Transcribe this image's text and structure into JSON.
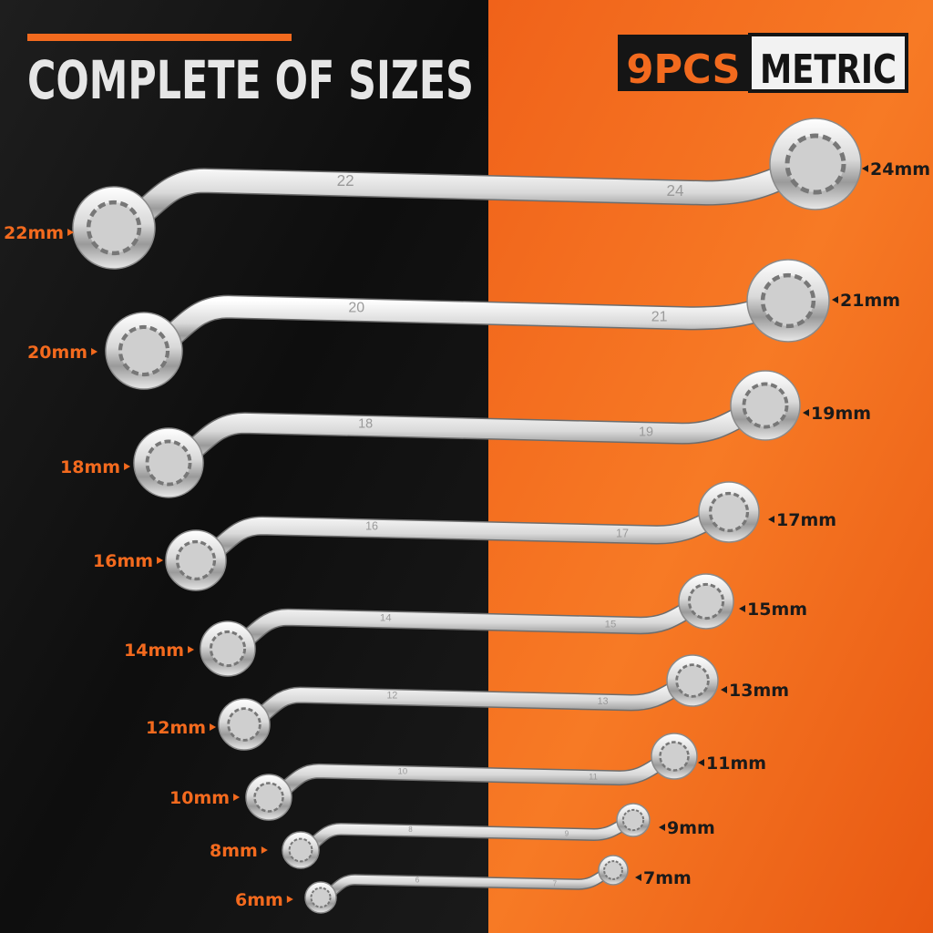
{
  "header": {
    "title": "COMPLETE OF SIZES",
    "badge_count": "9PCS",
    "badge_type": "METRIC"
  },
  "wrenches": [
    {
      "left_label": "22mm",
      "right_label": "24mm",
      "left_stamp": "22",
      "right_stamp": "24"
    },
    {
      "left_label": "20mm",
      "right_label": "21mm",
      "left_stamp": "20",
      "right_stamp": "21"
    },
    {
      "left_label": "18mm",
      "right_label": "19mm",
      "left_stamp": "18",
      "right_stamp": "19"
    },
    {
      "left_label": "16mm",
      "right_label": "17mm",
      "left_stamp": "16",
      "right_stamp": "17"
    },
    {
      "left_label": "14mm",
      "right_label": "15mm",
      "left_stamp": "14",
      "right_stamp": "15"
    },
    {
      "left_label": "12mm",
      "right_label": "13mm",
      "left_stamp": "12",
      "right_stamp": "13"
    },
    {
      "left_label": "10mm",
      "right_label": "11mm",
      "left_stamp": "10",
      "right_stamp": "11"
    },
    {
      "left_label": "8mm",
      "right_label": "9mm",
      "left_stamp": "8",
      "right_stamp": "9"
    },
    {
      "left_label": "6mm",
      "right_label": "7mm",
      "left_stamp": "6",
      "right_stamp": "7"
    }
  ]
}
